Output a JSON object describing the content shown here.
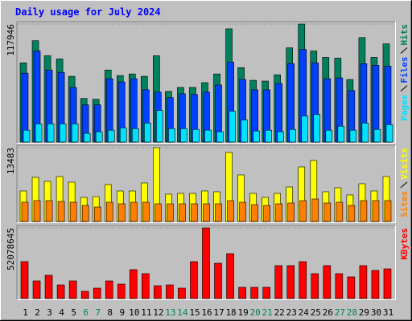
{
  "chart_data": [
    {
      "type": "bar",
      "title": "Daily usage for July 2024",
      "ylim": [
        0,
        117946
      ],
      "yticks": [
        117946
      ],
      "series": [
        {
          "name": "Hits",
          "color": "#00805c",
          "values": [
            79160,
            101325,
            86284,
            83118,
            65703,
            43538,
            42746,
            72036,
            66494,
            68078,
            65703,
            86284,
            50662,
            54620,
            54620,
            59370,
            68078,
            113199,
            74410,
            61745,
            60953,
            67286,
            94200,
            117946,
            91034,
            84701,
            83910,
            62536,
            104491,
            84701,
            98158
          ]
        },
        {
          "name": "Files",
          "color": "#0040ff",
          "values": [
            68869,
            91034,
            72036,
            69661,
            54620,
            37205,
            37205,
            63328,
            60162,
            63328,
            52246,
            49871,
            44330,
            48288,
            47496,
            49871,
            56995,
            79952,
            62536,
            52246,
            52246,
            58578,
            78368,
            92617,
            79160,
            63328,
            64120,
            51454,
            78368,
            76785,
            75994
          ]
        },
        {
          "name": "Pages",
          "color": "#00e0ff",
          "values": [
            11874,
            18207,
            18207,
            18207,
            18207,
            8708,
            10291,
            11874,
            14249,
            13457,
            18998,
            31664,
            13457,
            13457,
            12666,
            11874,
            10291,
            30872,
            22165,
            11082,
            11874,
            10291,
            12666,
            26123,
            27706,
            11874,
            15832,
            11874,
            18998,
            12666,
            17415
          ]
        }
      ]
    },
    {
      "type": "bar",
      "ylim": [
        0,
        13483
      ],
      "yticks": [
        13483
      ],
      "series": [
        {
          "name": "Visits",
          "color": "#ffff00",
          "values": [
            5571,
            8063,
            7330,
            8210,
            7183,
            4398,
            4545,
            6744,
            5571,
            5571,
            7037,
            13483,
            4984,
            5131,
            5131,
            5571,
            5424,
            12608,
            8503,
            5131,
            4398,
            5131,
            6304,
            9969,
            11142,
            5424,
            6157,
            4838,
            6890,
            5571,
            8210
          ]
        },
        {
          "name": "Sites",
          "color": "#ff8000",
          "values": [
            3518,
            3812,
            3812,
            3665,
            3518,
            2932,
            2639,
            3518,
            3225,
            3518,
            3518,
            3225,
            3225,
            3225,
            3225,
            3225,
            3225,
            3812,
            3518,
            3079,
            2932,
            3225,
            3372,
            3812,
            4105,
            3372,
            3518,
            2932,
            3812,
            3812,
            3812
          ]
        }
      ]
    },
    {
      "type": "bar",
      "ylim": [
        0,
        52078645
      ],
      "yticks": [
        52078645
      ],
      "categories": [
        "1",
        "2",
        "3",
        "4",
        "5",
        "6",
        "7",
        "8",
        "9",
        "10",
        "11",
        "12",
        "13",
        "14",
        "15",
        "16",
        "17",
        "18",
        "19",
        "20",
        "21",
        "22",
        "23",
        "24",
        "25",
        "26",
        "27",
        "28",
        "29",
        "30",
        "31"
      ],
      "category_colors": [
        "#000",
        "#000",
        "#000",
        "#000",
        "#000",
        "#00805c",
        "#00805c",
        "#000",
        "#000",
        "#000",
        "#000",
        "#000",
        "#00805c",
        "#00805c",
        "#000",
        "#000",
        "#000",
        "#000",
        "#000",
        "#00805c",
        "#00805c",
        "#000",
        "#000",
        "#000",
        "#000",
        "#000",
        "#00805c",
        "#00805c",
        "#000",
        "#000",
        "#000"
      ],
      "series": [
        {
          "name": "KBytes",
          "color": "#ff0000",
          "values": [
            27223000,
            13019700,
            17162300,
            10060600,
            13019700,
            5326200,
            7693400,
            13019700,
            10652400,
            21304900,
            18345900,
            9468800,
            10060600,
            7693400,
            27223000,
            52078645,
            26039300,
            33140900,
            8285200,
            8285200,
            8285200,
            24263900,
            24263900,
            27223000,
            18345900,
            24263900,
            18345900,
            15978700,
            24263900,
            20713100,
            21897000
          ]
        }
      ]
    }
  ]
}
